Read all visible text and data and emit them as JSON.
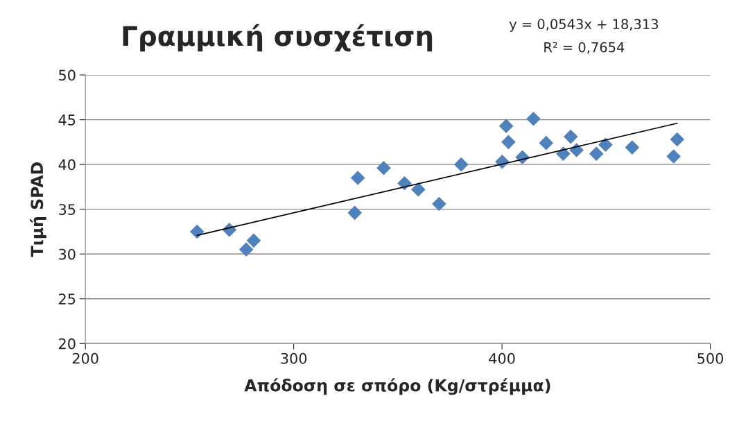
{
  "chart_data": {
    "type": "scatter",
    "title": "Γραμμική συσχέτιση",
    "xlabel": "Απόδοση σε σπόρο (Kg/στρέμμα)",
    "ylabel": "Τιμή SPAD",
    "annotations": [
      "y = 0,0543x + 18,313",
      "R² = 0,7654"
    ],
    "series": [
      {
        "color": "#4f81bd",
        "marker": "diamond",
        "x": [
          253.6,
          269.1,
          277.2,
          280.8,
          329.3,
          330.8,
          343.2,
          353.2,
          359.8,
          369.8,
          380.4,
          400.1,
          402.0,
          403.1,
          409.8,
          415.1,
          421.2,
          429.4,
          433.0,
          435.8,
          445.3,
          449.7,
          462.5,
          482.4,
          484.1
        ],
        "values": [
          32.5,
          32.7,
          30.5,
          31.5,
          34.6,
          38.5,
          39.6,
          37.9,
          37.2,
          35.6,
          40.0,
          40.3,
          44.3,
          42.5,
          40.8,
          45.1,
          42.4,
          41.2,
          43.1,
          41.6,
          41.2,
          42.2,
          41.9,
          40.9,
          42.8
        ]
      },
      {
        "type": "line",
        "color": "#000000",
        "marker": "none",
        "line_style": "solid",
        "x": [
          253.6,
          484.1
        ],
        "values": [
          32.08,
          44.6
        ]
      }
    ],
    "xlim": [
      200,
      500
    ],
    "xticks": [
      200,
      300,
      400,
      500
    ],
    "ylim": [
      20,
      50
    ],
    "yticks": [
      20,
      25,
      30,
      35,
      40,
      45,
      50
    ],
    "grid": "y",
    "legend": false
  }
}
